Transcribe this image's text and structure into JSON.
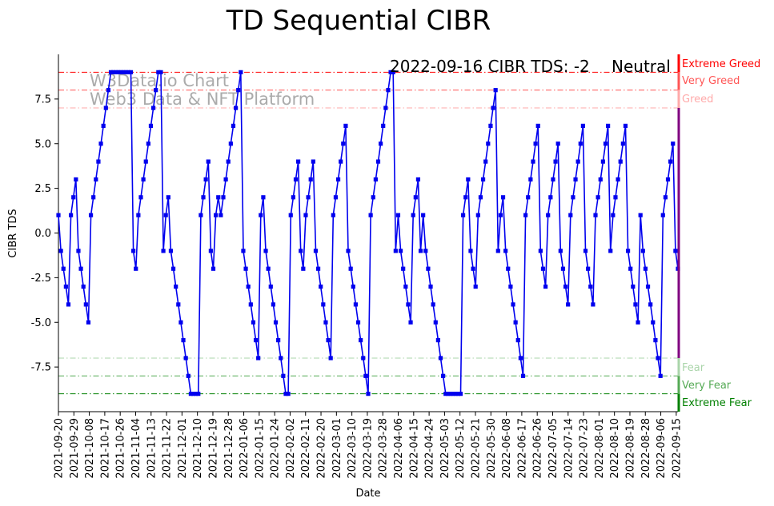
{
  "chart_data": {
    "type": "line",
    "title": "TD Sequential CIBR",
    "xlabel": "Date",
    "ylabel": "CIBR TDS",
    "ylim": [
      -10,
      10
    ],
    "x_range": [
      "2021-09-20",
      "2022-09-16"
    ],
    "y_ticks": [
      "-7.5",
      "-5.0",
      "-2.5",
      "0.0",
      "2.5",
      "5.0",
      "7.5"
    ],
    "y_tick_values": [
      -7.5,
      -5,
      -2.5,
      0,
      2.5,
      5,
      7.5
    ],
    "x_ticks": [
      "2021-09-20",
      "2021-09-29",
      "2021-10-08",
      "2021-10-17",
      "2021-10-26",
      "2021-11-04",
      "2021-11-13",
      "2021-11-22",
      "2021-12-01",
      "2021-12-10",
      "2021-12-19",
      "2021-12-28",
      "2022-01-06",
      "2022-01-15",
      "2022-01-24",
      "2022-02-02",
      "2022-02-11",
      "2022-02-20",
      "2022-03-01",
      "2022-03-10",
      "2022-03-19",
      "2022-03-28",
      "2022-04-06",
      "2022-04-15",
      "2022-04-24",
      "2022-05-03",
      "2022-05-12",
      "2022-05-21",
      "2022-05-30",
      "2022-06-08",
      "2022-06-17",
      "2022-06-26",
      "2022-07-05",
      "2022-07-14",
      "2022-07-23",
      "2022-08-01",
      "2022-08-10",
      "2022-08-19",
      "2022-08-28",
      "2022-09-06",
      "2022-09-15"
    ],
    "series": [
      {
        "name": "CIBR TDS",
        "color": "#0000ee",
        "values": [
          1,
          -1,
          -2,
          -3,
          -4,
          1,
          2,
          3,
          -1,
          -2,
          -3,
          -4,
          -5,
          1,
          2,
          3,
          4,
          5,
          6,
          7,
          8,
          9,
          9,
          9,
          9,
          9,
          9,
          9,
          9,
          9,
          -1,
          -2,
          1,
          2,
          3,
          4,
          5,
          6,
          7,
          8,
          9,
          9,
          -1,
          1,
          2,
          -1,
          -2,
          -3,
          -4,
          -5,
          -6,
          -7,
          -8,
          -9,
          -9,
          -9,
          -9,
          1,
          2,
          3,
          4,
          -1,
          -2,
          1,
          2,
          1,
          2,
          3,
          4,
          5,
          6,
          7,
          8,
          9,
          -1,
          -2,
          -3,
          -4,
          -5,
          -6,
          -7,
          1,
          2,
          -1,
          -2,
          -3,
          -4,
          -5,
          -6,
          -7,
          -8,
          -9,
          -9,
          1,
          2,
          3,
          4,
          -1,
          -2,
          1,
          2,
          3,
          4,
          -1,
          -2,
          -3,
          -4,
          -5,
          -6,
          -7,
          1,
          2,
          3,
          4,
          5,
          6,
          -1,
          -2,
          -3,
          -4,
          -5,
          -6,
          -7,
          -8,
          -9,
          1,
          2,
          3,
          4,
          5,
          6,
          7,
          8,
          9,
          9,
          -1,
          1,
          -1,
          -2,
          -3,
          -4,
          -5,
          1,
          2,
          3,
          -1,
          1,
          -1,
          -2,
          -3,
          -4,
          -5,
          -6,
          -7,
          -8,
          -9,
          -9,
          -9,
          -9,
          -9,
          -9,
          -9,
          1,
          2,
          3,
          -1,
          -2,
          -3,
          1,
          2,
          3,
          4,
          5,
          6,
          7,
          8,
          -1,
          1,
          2,
          -1,
          -2,
          -3,
          -4,
          -5,
          -6,
          -7,
          -8,
          1,
          2,
          3,
          4,
          5,
          6,
          -1,
          -2,
          -3,
          1,
          2,
          3,
          4,
          5,
          -1,
          -2,
          -3,
          -4,
          1,
          2,
          3,
          4,
          5,
          6,
          -1,
          -2,
          -3,
          -4,
          1,
          2,
          3,
          4,
          5,
          6,
          -1,
          1,
          2,
          3,
          4,
          5,
          6,
          -1,
          -2,
          -3,
          -4,
          -5,
          1,
          -1,
          -2,
          -3,
          -4,
          -5,
          -6,
          -7,
          -8,
          1,
          2,
          3,
          4,
          5,
          -1,
          -2
        ]
      }
    ],
    "reference_lines": [
      {
        "label": "Extreme Greed",
        "value": 9,
        "color": "#ff0000"
      },
      {
        "label": "Very Greed",
        "value": 8,
        "color": "#ff5555"
      },
      {
        "label": "Greed",
        "value": 7,
        "color": "#ffaaaa"
      },
      {
        "label": "Fear",
        "value": -7,
        "color": "#aad5aa"
      },
      {
        "label": "Very Fear",
        "value": -8,
        "color": "#55aa55"
      },
      {
        "label": "Extreme Fear",
        "value": -9,
        "color": "#008000"
      }
    ],
    "status": {
      "date": "2022-09-16",
      "text": "2022-09-16 CIBR TDS: -2",
      "sentiment": "Neutral",
      "sentiment_color": "#800080"
    },
    "watermark": [
      "W3Data.io Chart",
      "Web3 Data & NFT Platform"
    ]
  }
}
